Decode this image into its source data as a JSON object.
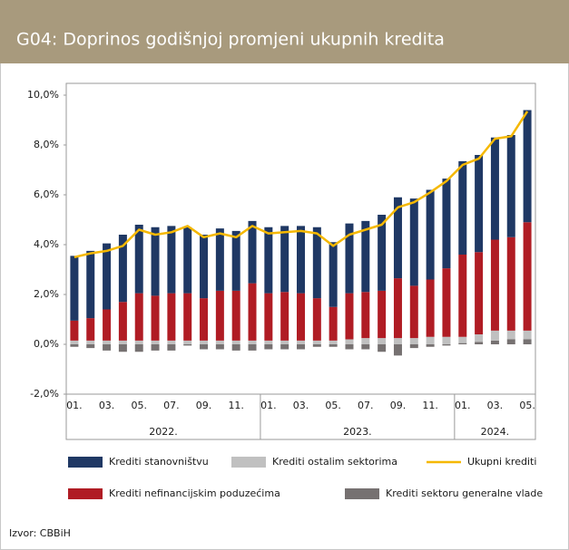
{
  "chart_data": {
    "type": "bar",
    "title": "G04: Doprinos godišnjoj promjeni ukupnih kredita",
    "source": "Izvor: CBBiH",
    "categories": [
      "01.",
      null,
      "03.",
      null,
      "05.",
      null,
      "07.",
      null,
      "09.",
      null,
      "11.",
      null,
      "01.",
      null,
      "03.",
      null,
      "05.",
      null,
      "07.",
      null,
      "09.",
      null,
      "11.",
      null,
      "01.",
      null,
      "03.",
      null,
      "05."
    ],
    "groups": [
      "2022.",
      "2023.",
      "2024."
    ],
    "ylim": [
      -2,
      10
    ],
    "yticks": [
      {
        "value": -2,
        "label": "-2,0%"
      },
      {
        "value": 0,
        "label": "0,0%"
      },
      {
        "value": 2,
        "label": "2,0%"
      },
      {
        "value": 4,
        "label": "4,0%"
      },
      {
        "value": 6,
        "label": "6,0%"
      },
      {
        "value": 8,
        "label": "8,0%"
      },
      {
        "value": 10,
        "label": "10,0%"
      }
    ],
    "grid": false,
    "series": [
      {
        "name": "Krediti stanovništvu",
        "color": "#1f3864",
        "type": "bar",
        "values": [
          2.6,
          2.7,
          2.65,
          2.7,
          2.75,
          2.75,
          2.7,
          2.65,
          2.55,
          2.5,
          2.4,
          2.5,
          2.65,
          2.65,
          2.7,
          2.85,
          2.6,
          2.8,
          2.85,
          3.05,
          3.25,
          3.5,
          3.6,
          3.6,
          3.75,
          3.9,
          4.1,
          4.1,
          4.5
        ]
      },
      {
        "name": "Krediti ostalim sektorima",
        "color": "#c0c0c0",
        "type": "bar",
        "values": [
          0.15,
          0.15,
          0.15,
          0.15,
          0.15,
          0.15,
          0.15,
          0.15,
          0.15,
          0.15,
          0.15,
          0.15,
          0.15,
          0.15,
          0.15,
          0.15,
          0.15,
          0.2,
          0.25,
          0.25,
          0.25,
          0.25,
          0.3,
          0.3,
          0.25,
          0.3,
          0.4,
          0.35,
          0.35
        ]
      },
      {
        "name": "Ukupni krediti",
        "color": "#f5b800",
        "type": "line",
        "values": [
          3.5,
          3.65,
          3.75,
          3.95,
          4.6,
          4.4,
          4.5,
          4.75,
          4.3,
          4.45,
          4.3,
          4.75,
          4.45,
          4.5,
          4.55,
          4.45,
          3.95,
          4.4,
          4.6,
          4.8,
          5.5,
          5.7,
          6.1,
          6.55,
          7.2,
          7.45,
          8.25,
          8.35,
          9.35
        ]
      },
      {
        "name": "Krediti nefinancijskim poduzećima",
        "color": "#b01c24",
        "type": "bar",
        "values": [
          0.8,
          0.9,
          1.25,
          1.55,
          1.9,
          1.8,
          1.9,
          1.9,
          1.7,
          2.0,
          2.0,
          2.3,
          1.9,
          1.95,
          1.9,
          1.7,
          1.35,
          1.85,
          1.85,
          1.9,
          2.4,
          2.1,
          2.3,
          2.75,
          3.3,
          3.3,
          3.65,
          3.75,
          4.35
        ]
      },
      {
        "name": "Krediti sektoru generalne vlade",
        "color": "#767171",
        "type": "bar",
        "values": [
          -0.1,
          -0.15,
          -0.25,
          -0.3,
          -0.3,
          -0.25,
          -0.25,
          -0.05,
          -0.2,
          -0.2,
          -0.25,
          -0.25,
          -0.2,
          -0.2,
          -0.2,
          -0.1,
          -0.1,
          -0.2,
          -0.2,
          -0.3,
          -0.45,
          -0.15,
          -0.1,
          -0.05,
          0.05,
          0.1,
          0.15,
          0.2,
          0.2
        ]
      }
    ]
  }
}
